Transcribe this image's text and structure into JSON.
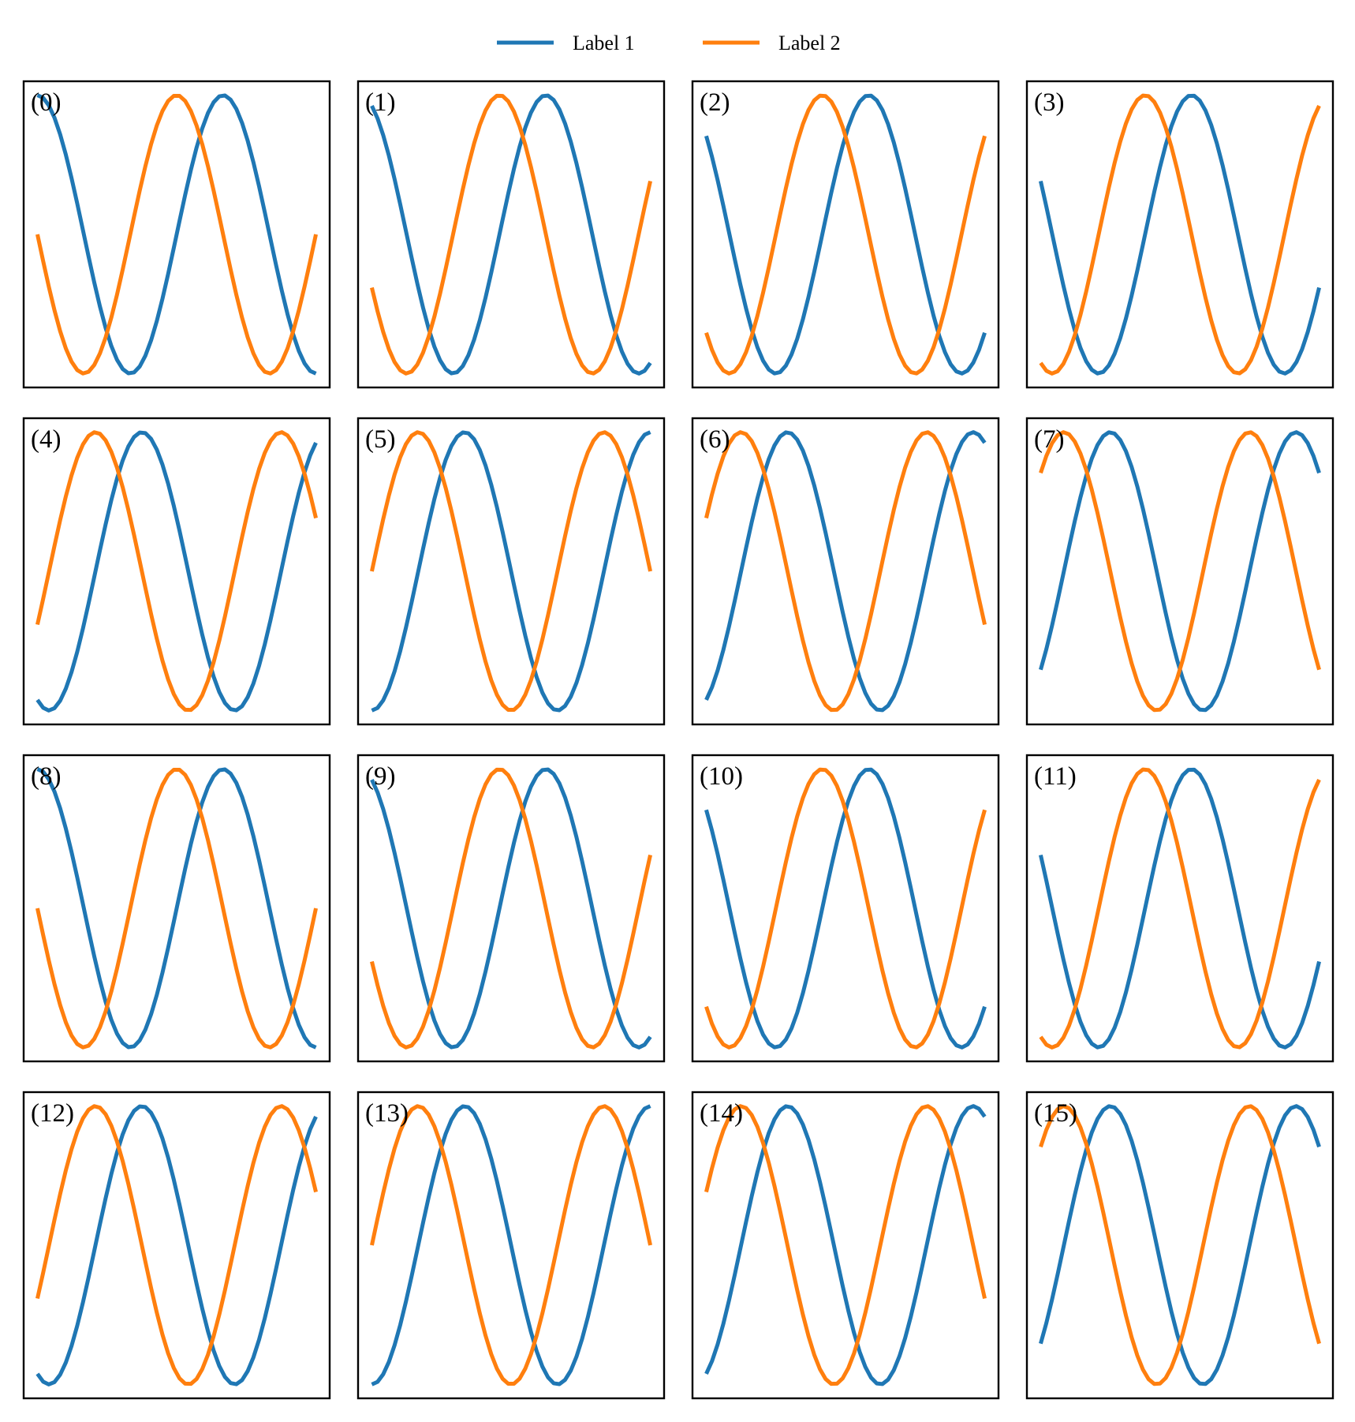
{
  "figure": {
    "legend_placement": "top-center",
    "legend": [
      {
        "label": "Label 1",
        "color": "#1f77b4"
      },
      {
        "label": "Label 2",
        "color": "#ff7f0e"
      }
    ]
  },
  "chart_data": [
    {
      "type": "line",
      "panel_label": "(0)",
      "x_range": [
        0,
        4.7124
      ],
      "ylim": [
        -1.1,
        1.1
      ],
      "grid": false,
      "axes_visible": false,
      "series": [
        {
          "name": "Label 1",
          "function": "sin",
          "phase": 1.5708,
          "color": "#1f77b4"
        },
        {
          "name": "Label 2",
          "function": "cos",
          "phase": 1.5708,
          "color": "#ff7f0e"
        }
      ]
    },
    {
      "type": "line",
      "panel_label": "(1)",
      "x_range": [
        0,
        4.7124
      ],
      "ylim": [
        -1.1,
        1.1
      ],
      "grid": false,
      "axes_visible": false,
      "series": [
        {
          "name": "Label 1",
          "function": "sin",
          "phase": 1.9635,
          "color": "#1f77b4"
        },
        {
          "name": "Label 2",
          "function": "cos",
          "phase": 1.9635,
          "color": "#ff7f0e"
        }
      ]
    },
    {
      "type": "line",
      "panel_label": "(2)",
      "x_range": [
        0,
        4.7124
      ],
      "ylim": [
        -1.1,
        1.1
      ],
      "grid": false,
      "axes_visible": false,
      "series": [
        {
          "name": "Label 1",
          "function": "sin",
          "phase": 2.3562,
          "color": "#1f77b4"
        },
        {
          "name": "Label 2",
          "function": "cos",
          "phase": 2.3562,
          "color": "#ff7f0e"
        }
      ]
    },
    {
      "type": "line",
      "panel_label": "(3)",
      "x_range": [
        0,
        4.7124
      ],
      "ylim": [
        -1.1,
        1.1
      ],
      "grid": false,
      "axes_visible": false,
      "series": [
        {
          "name": "Label 1",
          "function": "sin",
          "phase": 2.7489,
          "color": "#1f77b4"
        },
        {
          "name": "Label 2",
          "function": "cos",
          "phase": 2.7489,
          "color": "#ff7f0e"
        }
      ]
    },
    {
      "type": "line",
      "panel_label": "(4)",
      "x_range": [
        0,
        4.7124
      ],
      "ylim": [
        -1.1,
        1.1
      ],
      "grid": false,
      "axes_visible": false,
      "series": [
        {
          "name": "Label 1",
          "function": "sin",
          "phase": 4.3197,
          "color": "#1f77b4"
        },
        {
          "name": "Label 2",
          "function": "cos",
          "phase": 4.3197,
          "color": "#ff7f0e"
        }
      ]
    },
    {
      "type": "line",
      "panel_label": "(5)",
      "x_range": [
        0,
        4.7124
      ],
      "ylim": [
        -1.1,
        1.1
      ],
      "grid": false,
      "axes_visible": false,
      "series": [
        {
          "name": "Label 1",
          "function": "sin",
          "phase": 4.7124,
          "color": "#1f77b4"
        },
        {
          "name": "Label 2",
          "function": "cos",
          "phase": 4.7124,
          "color": "#ff7f0e"
        }
      ]
    },
    {
      "type": "line",
      "panel_label": "(6)",
      "x_range": [
        0,
        4.7124
      ],
      "ylim": [
        -1.1,
        1.1
      ],
      "grid": false,
      "axes_visible": false,
      "series": [
        {
          "name": "Label 1",
          "function": "sin",
          "phase": 5.1051,
          "color": "#1f77b4"
        },
        {
          "name": "Label 2",
          "function": "cos",
          "phase": 5.1051,
          "color": "#ff7f0e"
        }
      ]
    },
    {
      "type": "line",
      "panel_label": "(7)",
      "x_range": [
        0,
        4.7124
      ],
      "ylim": [
        -1.1,
        1.1
      ],
      "grid": false,
      "axes_visible": false,
      "series": [
        {
          "name": "Label 1",
          "function": "sin",
          "phase": 5.4978,
          "color": "#1f77b4"
        },
        {
          "name": "Label 2",
          "function": "cos",
          "phase": 5.4978,
          "color": "#ff7f0e"
        }
      ]
    },
    {
      "type": "line",
      "panel_label": "(8)",
      "x_range": [
        0,
        4.7124
      ],
      "ylim": [
        -1.1,
        1.1
      ],
      "grid": false,
      "axes_visible": false,
      "series": [
        {
          "name": "Label 1",
          "function": "sin",
          "phase": 1.5708,
          "color": "#1f77b4"
        },
        {
          "name": "Label 2",
          "function": "cos",
          "phase": 1.5708,
          "color": "#ff7f0e"
        }
      ]
    },
    {
      "type": "line",
      "panel_label": "(9)",
      "x_range": [
        0,
        4.7124
      ],
      "ylim": [
        -1.1,
        1.1
      ],
      "grid": false,
      "axes_visible": false,
      "series": [
        {
          "name": "Label 1",
          "function": "sin",
          "phase": 1.9635,
          "color": "#1f77b4"
        },
        {
          "name": "Label 2",
          "function": "cos",
          "phase": 1.9635,
          "color": "#ff7f0e"
        }
      ]
    },
    {
      "type": "line",
      "panel_label": "(10)",
      "x_range": [
        0,
        4.7124
      ],
      "ylim": [
        -1.1,
        1.1
      ],
      "grid": false,
      "axes_visible": false,
      "series": [
        {
          "name": "Label 1",
          "function": "sin",
          "phase": 2.3562,
          "color": "#1f77b4"
        },
        {
          "name": "Label 2",
          "function": "cos",
          "phase": 2.3562,
          "color": "#ff7f0e"
        }
      ]
    },
    {
      "type": "line",
      "panel_label": "(11)",
      "x_range": [
        0,
        4.7124
      ],
      "ylim": [
        -1.1,
        1.1
      ],
      "grid": false,
      "axes_visible": false,
      "series": [
        {
          "name": "Label 1",
          "function": "sin",
          "phase": 2.7489,
          "color": "#1f77b4"
        },
        {
          "name": "Label 2",
          "function": "cos",
          "phase": 2.7489,
          "color": "#ff7f0e"
        }
      ]
    },
    {
      "type": "line",
      "panel_label": "(12)",
      "x_range": [
        0,
        4.7124
      ],
      "ylim": [
        -1.1,
        1.1
      ],
      "grid": false,
      "axes_visible": false,
      "series": [
        {
          "name": "Label 1",
          "function": "sin",
          "phase": 4.3197,
          "color": "#1f77b4"
        },
        {
          "name": "Label 2",
          "function": "cos",
          "phase": 4.3197,
          "color": "#ff7f0e"
        }
      ]
    },
    {
      "type": "line",
      "panel_label": "(13)",
      "x_range": [
        0,
        4.7124
      ],
      "ylim": [
        -1.1,
        1.1
      ],
      "grid": false,
      "axes_visible": false,
      "series": [
        {
          "name": "Label 1",
          "function": "sin",
          "phase": 4.7124,
          "color": "#1f77b4"
        },
        {
          "name": "Label 2",
          "function": "cos",
          "phase": 4.7124,
          "color": "#ff7f0e"
        }
      ]
    },
    {
      "type": "line",
      "panel_label": "(14)",
      "x_range": [
        0,
        4.7124
      ],
      "ylim": [
        -1.1,
        1.1
      ],
      "grid": false,
      "axes_visible": false,
      "series": [
        {
          "name": "Label 1",
          "function": "sin",
          "phase": 5.1051,
          "color": "#1f77b4"
        },
        {
          "name": "Label 2",
          "function": "cos",
          "phase": 5.1051,
          "color": "#ff7f0e"
        }
      ]
    },
    {
      "type": "line",
      "panel_label": "(15)",
      "x_range": [
        0,
        4.7124
      ],
      "ylim": [
        -1.1,
        1.1
      ],
      "grid": false,
      "axes_visible": false,
      "series": [
        {
          "name": "Label 1",
          "function": "sin",
          "phase": 5.4978,
          "color": "#1f77b4"
        },
        {
          "name": "Label 2",
          "function": "cos",
          "phase": 5.4978,
          "color": "#ff7f0e"
        }
      ]
    }
  ]
}
